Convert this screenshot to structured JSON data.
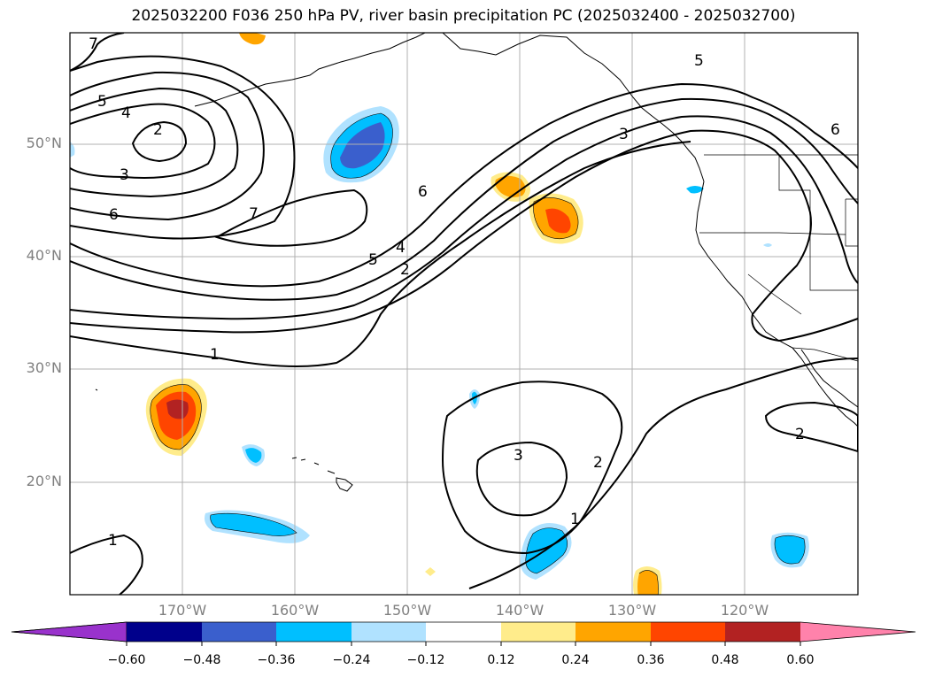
{
  "title": "2025032200 F036 250 hPa PV, river basin precipitation PC (2025032400 - 2025032700)",
  "map": {
    "projection": "PlateCarree",
    "lon_range": [
      180,
      -110
    ],
    "lat_range": [
      10,
      60
    ],
    "lat_labels": [
      "50°N",
      "40°N",
      "30°N",
      "20°N"
    ],
    "lon_labels": [
      "170°W",
      "160°W",
      "150°W",
      "140°W",
      "130°W",
      "120°W"
    ],
    "gridlines": true,
    "coastlines": true,
    "borders": true
  },
  "contours": {
    "field": "250 hPa PV",
    "color": "#000000",
    "labels": [
      {
        "value": "7"
      },
      {
        "value": "5"
      },
      {
        "value": "4"
      },
      {
        "value": "2"
      },
      {
        "value": "3"
      },
      {
        "value": "6"
      },
      {
        "value": "7"
      },
      {
        "value": "1"
      },
      {
        "value": "6"
      },
      {
        "value": "5"
      },
      {
        "value": "4"
      },
      {
        "value": "2"
      },
      {
        "value": "3"
      },
      {
        "value": "5"
      },
      {
        "value": "6"
      },
      {
        "value": "3"
      },
      {
        "value": "2"
      },
      {
        "value": "1"
      },
      {
        "value": "2"
      },
      {
        "value": "1"
      }
    ]
  },
  "shading": {
    "field": "river basin precipitation PC",
    "colors": {
      "neg_extend": "#9932CC",
      "neg_060": "#00008B",
      "neg_048": "#3A5FCD",
      "neg_036": "#00BFFF",
      "neg_024": "#B0E2FF",
      "neutral": "#FFFFFF",
      "pos_012": "#FFEC8B",
      "pos_024": "#FFA500",
      "pos_036": "#FF4500",
      "pos_048": "#B22222",
      "pos_extend": "#FF82AB"
    }
  },
  "colorbar": {
    "ticks": [
      "−0.60",
      "−0.48",
      "−0.36",
      "−0.24",
      "−0.12",
      "0.12",
      "0.24",
      "0.36",
      "0.48",
      "0.60"
    ],
    "extend": "both"
  }
}
